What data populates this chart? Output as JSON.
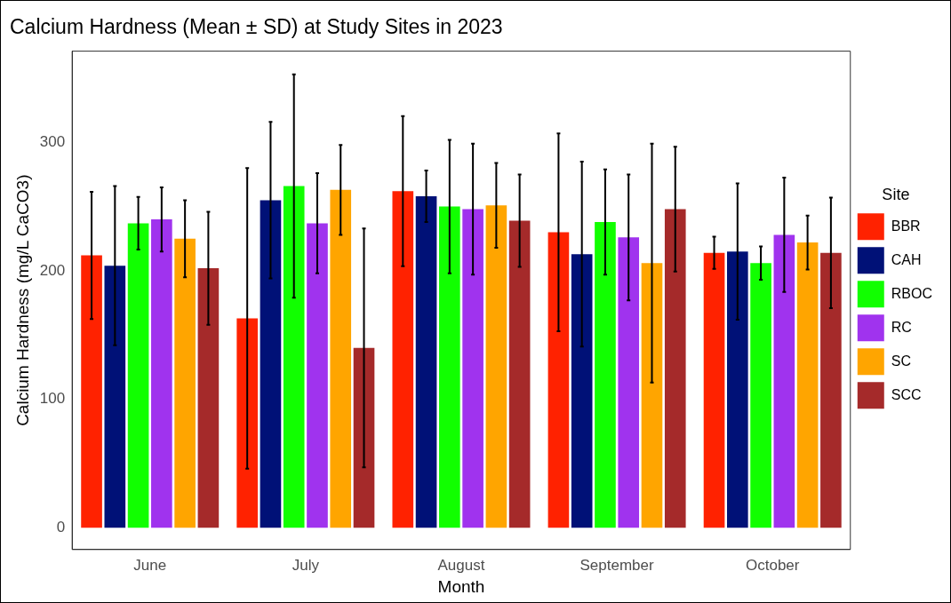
{
  "chart_data": {
    "type": "bar",
    "title": "Calcium Hardness (Mean ± SD) at Study Sites in 2023",
    "xlabel": "Month",
    "ylabel": "Calcium Hardness (mg/L CaCO3)",
    "legend_title": "Site",
    "legend": "right",
    "grid": false,
    "categories": [
      "June",
      "July",
      "August",
      "September",
      "October"
    ],
    "ylim": [
      -17,
      371
    ],
    "yticks": [
      0,
      100,
      200,
      300
    ],
    "series": [
      {
        "name": "BBR",
        "color": "#ff2200",
        "values": [
          212,
          163,
          262,
          230,
          214
        ],
        "errors": [
          49.5,
          117,
          58.5,
          77,
          12.5
        ]
      },
      {
        "name": "CAH",
        "color": "#001177",
        "values": [
          204,
          255,
          258,
          213,
          215
        ],
        "errors": [
          62,
          61,
          20,
          72,
          53
        ]
      },
      {
        "name": "RBOC",
        "color": "#11ff00",
        "values": [
          237,
          266,
          250,
          238,
          206
        ],
        "errors": [
          20.5,
          87,
          52,
          41,
          13
        ]
      },
      {
        "name": "RC",
        "color": "#a033ee",
        "values": [
          240,
          237,
          248,
          226,
          228
        ],
        "errors": [
          25,
          39,
          51,
          49,
          44.5
        ]
      },
      {
        "name": "SC",
        "color": "#ffa500",
        "values": [
          225,
          263,
          251,
          206,
          222
        ],
        "errors": [
          30,
          35,
          33,
          93,
          21
        ]
      },
      {
        "name": "SCC",
        "color": "#a52a2a",
        "values": [
          202,
          140,
          239,
          248,
          214
        ],
        "errors": [
          44,
          93,
          36,
          48.5,
          43
        ]
      }
    ]
  }
}
